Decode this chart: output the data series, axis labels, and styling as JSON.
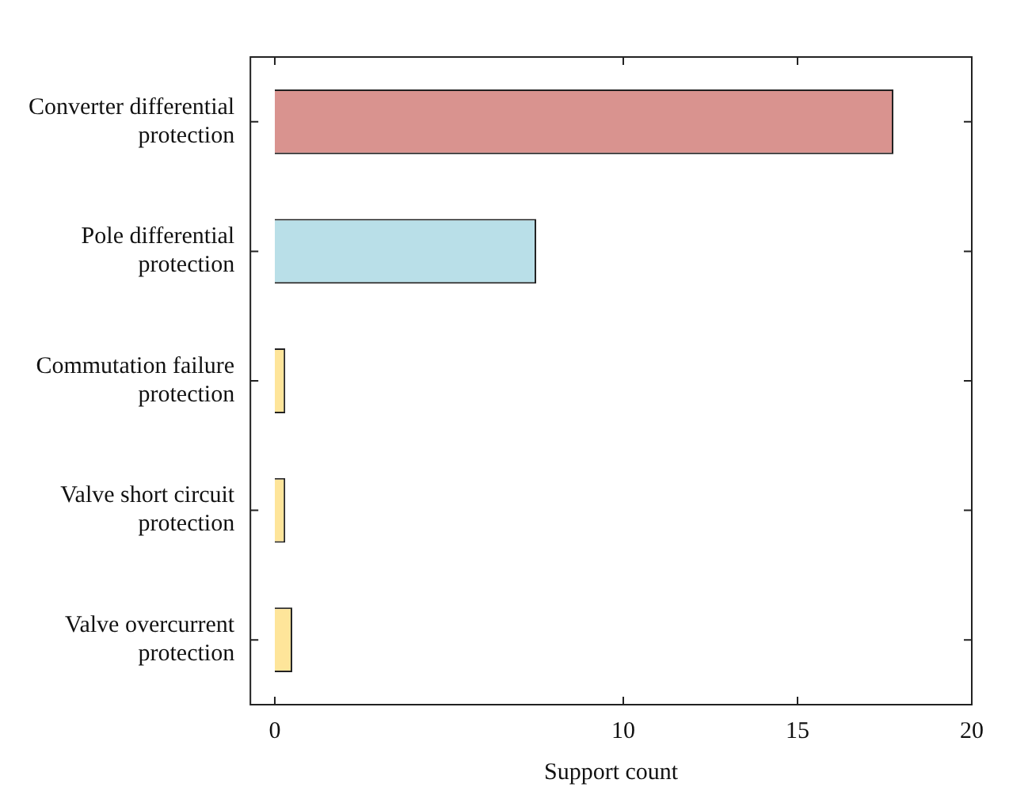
{
  "chart_data": {
    "type": "bar",
    "orientation": "horizontal",
    "xlabel": "Support count",
    "categories": [
      "Converter differential protection",
      "Pole differential protection",
      "Commutation failure protection",
      "Valve short circuit protection",
      "Valve overcurrent protection"
    ],
    "values": [
      17.75,
      7.5,
      0.3,
      0.3,
      0.5
    ],
    "colors": [
      "#d9938f",
      "#b9dfe8",
      "#fee59a",
      "#fee59a",
      "#fee59a"
    ],
    "xlim": [
      -0.7,
      20
    ],
    "xticks": [
      0,
      10,
      15,
      20
    ],
    "grid": false,
    "legend": false
  }
}
